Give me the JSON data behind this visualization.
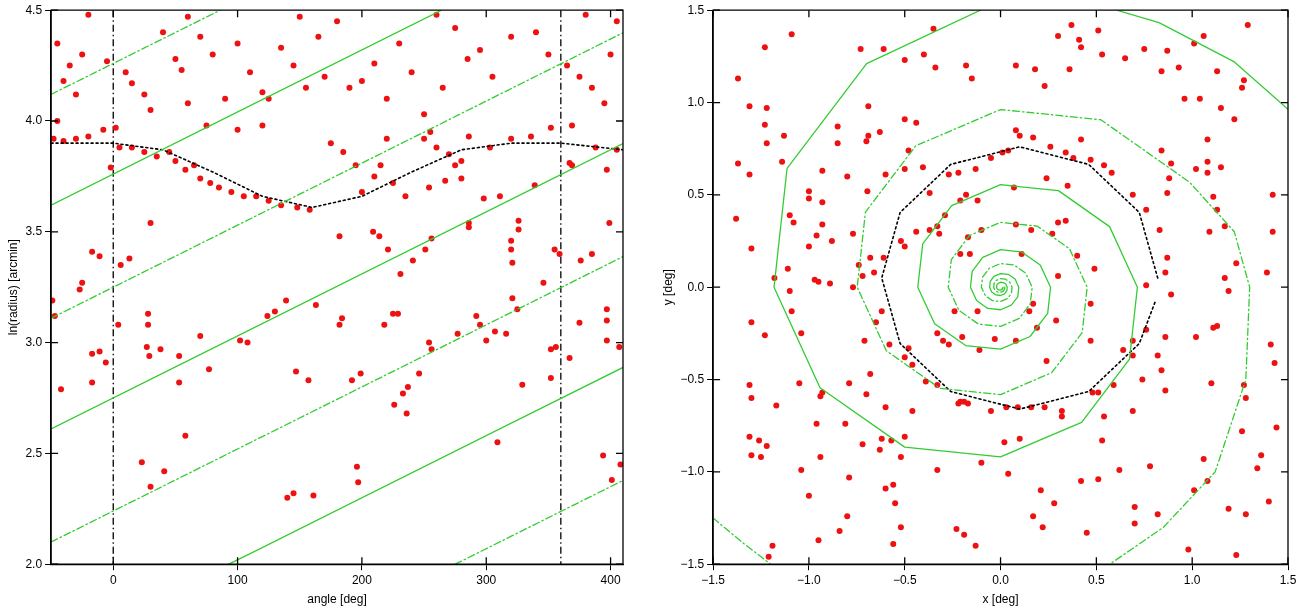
{
  "chart_data": [
    {
      "type": "scatter",
      "xlabel": "angle [deg]",
      "ylabel": "ln(radius) [arcmin]",
      "xlim": [
        -50,
        410
      ],
      "ylim": [
        2.0,
        4.5
      ],
      "xticks": [
        0,
        100,
        200,
        300,
        400
      ],
      "yticks": [
        {
          "value": 2,
          "label": "2.0"
        },
        {
          "value": 2.5,
          "label": "2.5"
        },
        {
          "value": 3,
          "label": "3.0"
        },
        {
          "value": 3.5,
          "label": "3.5"
        },
        {
          "value": 4,
          "label": "4.0"
        },
        {
          "value": 4.5,
          "label": "4.5"
        }
      ],
      "grid": false,
      "legend": false,
      "ref_lines": [
        {
          "axis": "x",
          "value": 0,
          "color": "#000000",
          "line_style": "dashed"
        },
        {
          "axis": "x",
          "value": 360,
          "color": "#000000",
          "line_style": "dashed"
        }
      ],
      "series": [
        {
          "type": "scatter",
          "marker": "circle",
          "color": "#ee1111",
          "x": [
            -48,
            -40,
            -30,
            -20,
            -8,
            2,
            5,
            15,
            25,
            35,
            45,
            50,
            58,
            65,
            70,
            78,
            85,
            95,
            105,
            115,
            125,
            135,
            148,
            158,
            200,
            210,
            215,
            225,
            235,
            250,
            260,
            270,
            275,
            280,
            303,
            320,
            336,
            352,
            369,
            388,
            397,
            405,
            280,
            267,
            254,
            286,
            369,
            -2,
            -45,
            -35,
            -25,
            -40,
            -30,
            -5,
            10,
            15,
            25,
            30,
            40,
            50,
            55,
            60,
            70,
            80,
            90,
            100,
            110,
            120,
            125,
            135,
            145,
            155,
            165,
            170,
            180,
            190,
            200,
            210,
            220,
            230,
            240,
            250,
            255,
            265,
            275,
            285,
            295,
            305,
            320,
            340,
            350,
            365,
            375,
            385,
            395,
            400,
            405,
            -20,
            60,
            150,
            260,
            380,
            75,
            100,
            120,
            175,
            185,
            195,
            220,
            -45,
            -49,
            -47,
            -27,
            -42,
            -17,
            -11,
            -6,
            -17,
            4,
            28,
            28,
            27,
            29,
            38,
            53,
            53,
            70,
            77,
            102,
            108,
            124,
            130,
            139,
            147,
            157,
            163,
            182,
            184,
            218,
            225,
            229,
            192,
            199,
            226,
            233,
            237,
            236,
            246,
            256,
            58,
            23,
            41,
            30,
            140,
            145,
            161,
            196,
            197,
            30,
            -17,
            -11,
            -25,
            6,
            13,
            209,
            214,
            221,
            182,
            241,
            251,
            231,
            256,
            320,
            321,
            320,
            326,
            346,
            355,
            359,
            321,
            325,
            292,
            295,
            277,
            307,
            316,
            300,
            254,
            352,
            356,
            367,
            375,
            376,
            385,
            399,
            397,
            397,
            397,
            407,
            329,
            352,
            309,
            394,
            408,
            401,
            286,
            286,
            298,
            311,
            339,
            326,
            367
          ],
          "values": [
            3.92,
            3.91,
            3.92,
            3.93,
            3.96,
            3.97,
            3.88,
            3.88,
            3.86,
            3.84,
            3.86,
            3.82,
            3.78,
            3.8,
            3.74,
            3.72,
            3.7,
            3.68,
            3.66,
            3.66,
            3.64,
            3.62,
            3.61,
            3.6,
            3.68,
            3.75,
            3.8,
            3.72,
            3.66,
            3.92,
            3.88,
            3.85,
            3.8,
            3.74,
            3.88,
            3.92,
            3.93,
            3.97,
            3.98,
            3.88,
            3.78,
            3.87,
            3.82,
            3.73,
            3.7,
            3.93,
            3.8,
            3.79,
            4.35,
            4.25,
            4.3,
            4.18,
            4.12,
            4.27,
            4.22,
            4.17,
            4.12,
            4.05,
            4.4,
            4.28,
            4.23,
            4.08,
            4.38,
            4.3,
            4.1,
            4.35,
            4.22,
            4.13,
            4.1,
            4.33,
            4.25,
            4.15,
            4.38,
            4.2,
            4.45,
            4.15,
            4.18,
            4.26,
            4.1,
            4.35,
            4.22,
            4.03,
            3.95,
            4.15,
            4.42,
            4.28,
            4.32,
            4.2,
            4.38,
            4.4,
            4.3,
            4.25,
            4.2,
            4.15,
            4.08,
            4.3,
            4.45,
            4.48,
            4.47,
            4.47,
            4.48,
            4.48,
            3.98,
            3.96,
            3.98,
            3.9,
            3.86,
            3.8,
            3.92,
            4.0,
            3.19,
            3.12,
            3.24,
            2.79,
            2.95,
            2.96,
            2.91,
            2.82,
            3.08,
            3.13,
            3.08,
            2.98,
            2.94,
            2.97,
            2.94,
            2.82,
            3.03,
            2.88,
            3.01,
            3.0,
            3.12,
            3.14,
            3.19,
            2.87,
            2.83,
            3.17,
            3.08,
            3.11,
            3.08,
            3.13,
            3.13,
            2.83,
            2.86,
            2.72,
            2.77,
            2.8,
            2.68,
            2.86,
            2.97,
            2.58,
            2.46,
            2.42,
            2.35,
            2.3,
            2.32,
            2.31,
            2.44,
            2.37,
            3.54,
            3.41,
            3.39,
            3.27,
            3.35,
            3.38,
            3.5,
            3.48,
            3.42,
            3.48,
            3.37,
            3.42,
            3.31,
            3.47,
            3.42,
            3.36,
            3.46,
            3.51,
            3.27,
            3.42,
            3.4,
            3.2,
            3.15,
            3.12,
            3.08,
            3.04,
            3.05,
            3.04,
            3.01,
            3.0,
            2.97,
            2.98,
            2.93,
            3.09,
            3.37,
            3.4,
            3.54,
            3.15,
            3.1,
            3.01,
            2.98,
            2.81,
            2.84,
            2.55,
            2.49,
            2.45,
            2.38,
            3.54,
            3.52,
            3.65,
            3.66,
            3.71,
            3.55,
            3.81
          ]
        },
        {
          "type": "line",
          "color": "#33cc33",
          "line_style": "solid",
          "x": [
            -50,
            264
          ],
          "values": [
            3.62,
            4.5
          ]
        },
        {
          "type": "line",
          "color": "#33cc33",
          "line_style": "solid",
          "x": [
            -50,
            410
          ],
          "values": [
            2.61,
            3.898
          ]
        },
        {
          "type": "line",
          "color": "#33cc33",
          "line_style": "solid",
          "x": [
            93,
            410
          ],
          "values": [
            2.0,
            2.888
          ]
        },
        {
          "type": "line",
          "color": "#33cc33",
          "line_style": "dashed",
          "x": [
            -50,
            86
          ],
          "values": [
            4.12,
            4.5
          ]
        },
        {
          "type": "line",
          "color": "#33cc33",
          "line_style": "dashed",
          "x": [
            -50,
            410
          ],
          "values": [
            3.11,
            4.398
          ]
        },
        {
          "type": "line",
          "color": "#33cc33",
          "line_style": "dashed",
          "x": [
            -50,
            410
          ],
          "values": [
            2.1,
            3.388
          ]
        },
        {
          "type": "line",
          "color": "#33cc33",
          "line_style": "dashed",
          "x": [
            275,
            410
          ],
          "values": [
            2.0,
            2.378
          ]
        },
        {
          "type": "line",
          "color": "#000000",
          "line_style": "dotted",
          "x": [
            -50,
            0,
            40,
            80,
            120,
            160,
            200,
            240,
            280,
            320,
            360,
            410
          ],
          "values": [
            3.9,
            3.9,
            3.87,
            3.77,
            3.66,
            3.61,
            3.66,
            3.77,
            3.87,
            3.9,
            3.9,
            3.87
          ]
        }
      ]
    },
    {
      "type": "scatter",
      "xlabel": "x [deg]",
      "ylabel": "y [deg]",
      "xlim": [
        -1.5,
        1.5
      ],
      "ylim": [
        -1.5,
        1.5
      ],
      "xticks": [
        {
          "value": -1.5,
          "label": "−1.5"
        },
        {
          "value": -1,
          "label": "−1.0"
        },
        {
          "value": -0.5,
          "label": "−0.5"
        },
        {
          "value": 0,
          "label": "0.0"
        },
        {
          "value": 0.5,
          "label": "0.5"
        },
        {
          "value": 1,
          "label": "1.0"
        },
        {
          "value": 1.5,
          "label": "1.5"
        }
      ],
      "yticks": [
        {
          "value": -1.5,
          "label": "−1.5"
        },
        {
          "value": -1,
          "label": "−1.0"
        },
        {
          "value": -0.5,
          "label": "−0.5"
        },
        {
          "value": 0,
          "label": "0.0"
        },
        {
          "value": 0.5,
          "label": "0.5"
        },
        {
          "value": 1,
          "label": "1.0"
        },
        {
          "value": 1.5,
          "label": "1.5"
        }
      ],
      "grid": false,
      "legend": false,
      "series": [
        {
          "type": "scatter",
          "marker": "circle",
          "color": "#ee1111",
          "x": [
            -0.405,
            -0.695,
            -0.8,
            -0.77,
            -0.74,
            -0.72,
            -0.68,
            -0.61,
            -0.66,
            -0.62,
            -0.71,
            -0.58,
            -0.5,
            -0.48,
            -0.46,
            -0.39,
            -0.33,
            -0.21,
            -0.17,
            -0.5,
            -0.6,
            -0.27,
            -0.52,
            -0.5,
            -0.44,
            -0.37,
            -0.33,
            -0.29,
            -0.32,
            -0.21,
            -0.37,
            -0.21,
            -0.3,
            -0.27,
            -0.33,
            -0.97,
            -0.95,
            -0.89,
            -1.1,
            -1.08,
            -1.11,
            -1.1,
            -1.09,
            -1.04,
            -0.93,
            -0.94,
            -0.79,
            -0.68,
            -0.65,
            -0.77,
            -1.09,
            -1.23,
            -1.37,
            -1.31,
            -1.22,
            -1.23,
            -1.37,
            -1.31,
            -1.22,
            -1.14,
            -1.13,
            -1.38,
            -1.3,
            -1.18,
            -1.3,
            -1.23,
            -1.31,
            -1.3,
            -1.31,
            -1.26,
            -1.3,
            -1.25,
            -1.22,
            -1.17,
            -1.05,
            -1.04,
            -1.0,
            -0.79,
            -0.8,
            -0.84,
            -0.95,
            -1.19,
            -1.21,
            -0.94,
            -0.96,
            -0.81,
            -0.72,
            -0.62,
            -0.63,
            -0.57,
            -0.52,
            -0.5,
            -0.33,
            -0.56,
            -0.55,
            -0.52,
            -0.56,
            -0.6,
            -0.7,
            -0.6,
            -0.46,
            -0.23,
            -0.85,
            -0.85,
            -0.63,
            -0.69,
            -0.5,
            -0.44,
            -0.48,
            -0.93,
            -1.0,
            -1.0,
            -0.93,
            -1.0,
            -0.93,
            -0.96,
            -0.88,
            -0.73,
            -0.61,
            -0.5,
            -0.4,
            -0.34,
            -0.35,
            -0.69,
            -0.7,
            0.08,
            0.1,
            0.04,
            0.01,
            -0.05,
            -0.13,
            -0.22,
            0.17,
            0.26,
            0.34,
            0.38,
            0.42,
            0.47,
            0.54,
            0.58,
            0.69,
            0.76,
            0.83,
            0.87,
            0.86,
            0.76,
            0.89,
            0.76,
            0.69,
            0.64,
            0.69,
            0.59,
            0.51,
            0.48,
            0.32,
            0.23,
            0.16,
            0.09,
            0.03,
            0.32,
            -0.05,
            -0.19,
            -0.22,
            -0.18,
            -0.12,
            0.07,
            0.24,
            0.35,
            0.3,
            0.34,
            0.27,
            0.08,
            0.16,
            -0.1,
            -0.17,
            -0.16,
            0.4,
            0.49,
            0.3,
            0.11,
            0.17,
            0.15,
            0.19,
            0.29,
            0.08,
            -0.03,
            -0.12,
            -0.24,
            -0.2,
            -0.11,
            0.47,
            0.47,
            0.24,
            1.17,
            1.19,
            1.02,
            1.11,
            1.13,
            0.86,
            0.82,
            0.84,
            0.86,
            0.74,
            0.54,
            0.69,
            0.53,
            0.62,
            0.78,
            0.42,
            0.51,
            0.28,
            0.21,
            0.04,
            0.1,
            0.02,
            -0.1,
            -0.19,
            -0.13,
            0.17,
            0.22,
            0.45,
            0.7,
            0.82,
            0.7,
            0.98,
            1.08,
            1.19,
            1.28,
            1.23,
            1.36,
            1.34,
            1.4,
            1.44,
            1.43,
            1.41,
            1.27,
            1.28,
            1.1,
            1.06,
            1.01,
            1.26,
            1.42,
            1.42,
            1.39,
            1.23,
            1.17,
            1.13,
            1.11,
            1.09,
            1.08,
            1.08,
            1.15,
            1.02,
            0.89,
            0.88,
            0.84,
            0.87,
            1.08,
            0.96,
            1.04,
            1.15,
            1.22,
            1.27,
            1.26,
            1.13,
            1.01,
            1.06,
            0.87,
            0.93,
            0.84,
            0.75,
            0.65,
            0.53,
            0.41,
            0.42,
            0.3,
            0.51,
            0.37,
            0.36,
            0.23,
            0.18,
            0.08,
            -0.18,
            -0.15,
            1.29
          ],
          "values": [
            0.65,
            0.52,
            0.6,
            0.29,
            0.12,
            0.06,
            0.16,
            0.16,
            0.08,
            -0.13,
            -0.29,
            -0.31,
            -0.38,
            -0.33,
            -0.42,
            -0.51,
            -0.53,
            -0.62,
            -0.63,
            0.64,
            0.61,
            0.61,
            0.25,
            0.22,
            0.3,
            0.31,
            0.33,
            0.39,
            0.29,
            0.47,
            0.51,
            0.18,
            -0.29,
            -0.31,
            -0.25,
            0.04,
            0.03,
            0.02,
            0.39,
            0.35,
            0.1,
            -0.02,
            -0.13,
            -0.25,
            -0.57,
            -0.59,
            -0.52,
            -0.47,
            -0.19,
            0.0,
            1.37,
            1.3,
            1.13,
            0.98,
            0.97,
            0.88,
            0.67,
            0.61,
            0.78,
            0.68,
            0.82,
            0.37,
            0.21,
            0.05,
            -0.19,
            -0.26,
            -0.53,
            -0.6,
            -0.81,
            -0.83,
            -0.91,
            -0.92,
            -0.86,
            -0.64,
            -0.52,
            -0.99,
            -1.13,
            -1.03,
            -1.24,
            -1.32,
            -1.37,
            -1.4,
            -1.46,
            -0.92,
            -0.74,
            -0.74,
            -0.85,
            -0.82,
            -0.88,
            -0.83,
            -0.92,
            -0.81,
            -0.99,
            -1.07,
            -1.17,
            -1.3,
            -1.39,
            -1.09,
            -0.58,
            -0.65,
            -0.67,
            -1.31,
            0.87,
            0.78,
            0.84,
            0.82,
            0.91,
            0.89,
            0.74,
            0.63,
            0.52,
            0.48,
            0.46,
            0.22,
            0.34,
            0.28,
            0.25,
            1.29,
            1.29,
            1.23,
            1.26,
            1.19,
            1.4,
            0.98,
            0.79,
            0.85,
            0.82,
            0.74,
            0.73,
            0.7,
            0.64,
            0.62,
            0.81,
            0.76,
            0.73,
            0.7,
            0.8,
            0.69,
            0.66,
            0.62,
            0.5,
            0.42,
            0.31,
            0.16,
            0.08,
            0.01,
            -0.04,
            -0.23,
            -0.29,
            -0.34,
            -0.37,
            -0.53,
            -0.57,
            -0.57,
            -0.67,
            -0.65,
            -0.65,
            -0.65,
            -0.65,
            -0.7,
            -0.67,
            -0.62,
            -0.63,
            0.5,
            0.47,
            0.54,
            0.59,
            0.55,
            0.35,
            0.36,
            0.29,
            0.34,
            0.31,
            0.31,
            0.27,
            0.18,
            0.17,
            0.1,
            0.06,
            0.18,
            -0.09,
            -0.13,
            -0.22,
            -0.18,
            -0.29,
            -0.28,
            -0.13,
            -0.13,
            -0.27,
            -0.34,
            -0.09,
            -0.29,
            -0.4,
            0.05,
            -0.02,
            -0.27,
            -0.22,
            -0.21,
            -0.27,
            -0.37,
            -0.45,
            -0.56,
            -0.5,
            -0.7,
            -0.67,
            -0.83,
            -0.99,
            -0.97,
            -1.05,
            -1.04,
            -1.17,
            -1.1,
            -1.01,
            -0.82,
            -0.84,
            -0.95,
            -1.34,
            -1.4,
            -1.24,
            -1.3,
            -1.33,
            -1.19,
            -1.23,
            -1.28,
            -1.42,
            -1.05,
            -1.2,
            -1.23,
            -1.45,
            -0.91,
            -0.98,
            -1.16,
            -0.76,
            -0.41,
            -0.31,
            -0.53,
            -0.6,
            -0.52,
            -0.93,
            -1.1,
            -0.78,
            0.5,
            0.3,
            0.08,
            0.13,
            0.33,
            0.42,
            0.49,
            0.3,
            0.68,
            0.62,
            0.65,
            0.64,
            0.67,
            0.59,
            0.74,
            0.51,
            0.8,
            1.02,
            1.02,
            0.97,
            0.91,
            1.12,
            1.08,
            1.17,
            1.32,
            1.36,
            1.28,
            1.19,
            1.17,
            1.29,
            1.24,
            1.26,
            1.34,
            1.3,
            1.36,
            1.39,
            1.42,
            1.18,
            1.09,
            1.18,
            1.2,
            1.2,
            1.13,
            1.42
          ]
        },
        {
          "type": "line",
          "color": "#33cc33",
          "line_style": "solid",
          "x": [
            0.013,
            0.012,
            0.008,
            0,
            -0.009,
            -0.017,
            -0.021,
            -0.02,
            -0.012,
            0,
            0.015,
            0.028,
            0.035,
            0.033,
            0.021,
            0,
            -0.024,
            -0.046,
            -0.057,
            -0.054,
            -0.034,
            0,
            0.04,
            0.076,
            0.095,
            0.09,
            0.056,
            0,
            -0.067,
            -0.125,
            -0.157,
            -0.148,
            -0.093,
            0,
            0.11,
            0.207,
            0.261,
            0.246,
            0.154,
            0,
            -0.182,
            -0.344,
            -0.432,
            -0.406,
            -0.255,
            0,
            0.302,
            0.569,
            0.714,
            0.673,
            0.423,
            0,
            -0.5,
            -0.942,
            -1.182,
            -1.114,
            -0.699,
            -0.105,
            0.25,
            0.606,
            0.827,
            1.22,
            1.5
          ],
          "values": [
            0,
            -0.007,
            -0.013,
            -0.016,
            -0.015,
            -0.01,
            0,
            0.011,
            0.021,
            0.027,
            0.025,
            0.016,
            0,
            -0.019,
            -0.036,
            -0.045,
            -0.042,
            -0.026,
            0,
            0.031,
            0.059,
            0.074,
            0.07,
            0.044,
            0,
            -0.052,
            -0.097,
            -0.122,
            -0.115,
            -0.072,
            0,
            0.086,
            0.161,
            0.203,
            0.191,
            0.12,
            0,
            -0.142,
            -0.267,
            -0.335,
            -0.316,
            -0.198,
            0,
            0.235,
            0.442,
            0.555,
            0.523,
            0.328,
            0,
            -0.389,
            -0.732,
            -0.919,
            -0.866,
            -0.544,
            0,
            0.643,
            1.211,
            1.5,
            null,
            1.5,
            1.433,
            1.22,
            0.963
          ]
        },
        {
          "type": "line",
          "color": "#33cc33",
          "line_style": "dashed",
          "x": [
            0.022,
            0.021,
            0.013,
            0,
            -0.015,
            -0.029,
            -0.036,
            -0.034,
            -0.022,
            0,
            0.025,
            0.048,
            0.06,
            0.057,
            0.036,
            0,
            -0.042,
            -0.079,
            -0.1,
            -0.094,
            -0.059,
            0,
            0.07,
            0.131,
            0.165,
            0.155,
            0.098,
            0,
            -0.115,
            -0.217,
            -0.273,
            -0.257,
            -0.162,
            0,
            0.191,
            0.36,
            0.452,
            0.426,
            0.267,
            0,
            -0.316,
            -0.596,
            -0.748,
            -0.705,
            -0.442,
            0,
            0.523,
            0.986,
            1.22,
            1.3,
            1.28,
            1.12,
            0.85,
            0.57,
            -1.0,
            -1.5,
            -1.35,
            -1.2
          ],
          "values": [
            0,
            -0.012,
            -0.023,
            -0.028,
            -0.027,
            -0.017,
            0,
            0.02,
            0.037,
            0.047,
            0.044,
            0.028,
            0,
            -0.033,
            -0.062,
            -0.077,
            -0.073,
            -0.046,
            0,
            0.054,
            0.102,
            0.128,
            0.121,
            0.076,
            0,
            -0.09,
            -0.169,
            -0.212,
            -0.2,
            -0.126,
            0,
            0.149,
            0.28,
            0.351,
            0.331,
            0.208,
            0,
            -0.246,
            -0.463,
            -0.582,
            -0.548,
            -0.344,
            0,
            0.407,
            0.766,
            0.962,
            0.907,
            0.569,
            0.3,
            0,
            -0.5,
            -1.0,
            -1.3,
            -1.5,
            null,
            -1.25,
            -1.38,
            -1.5
          ]
        },
        {
          "type": "line",
          "color": "#000000",
          "line_style": "dotted",
          "x": [
            0.82,
            0.724,
            0.46,
            0.1,
            -0.26,
            -0.524,
            -0.62,
            -0.524,
            -0.26,
            0.1,
            0.46,
            0.724,
            0.809
          ],
          "values": [
            0.05,
            0.405,
            0.665,
            0.76,
            0.665,
            0.405,
            0.05,
            -0.305,
            -0.565,
            -0.66,
            -0.565,
            -0.305,
            -0.073
          ]
        }
      ]
    }
  ]
}
